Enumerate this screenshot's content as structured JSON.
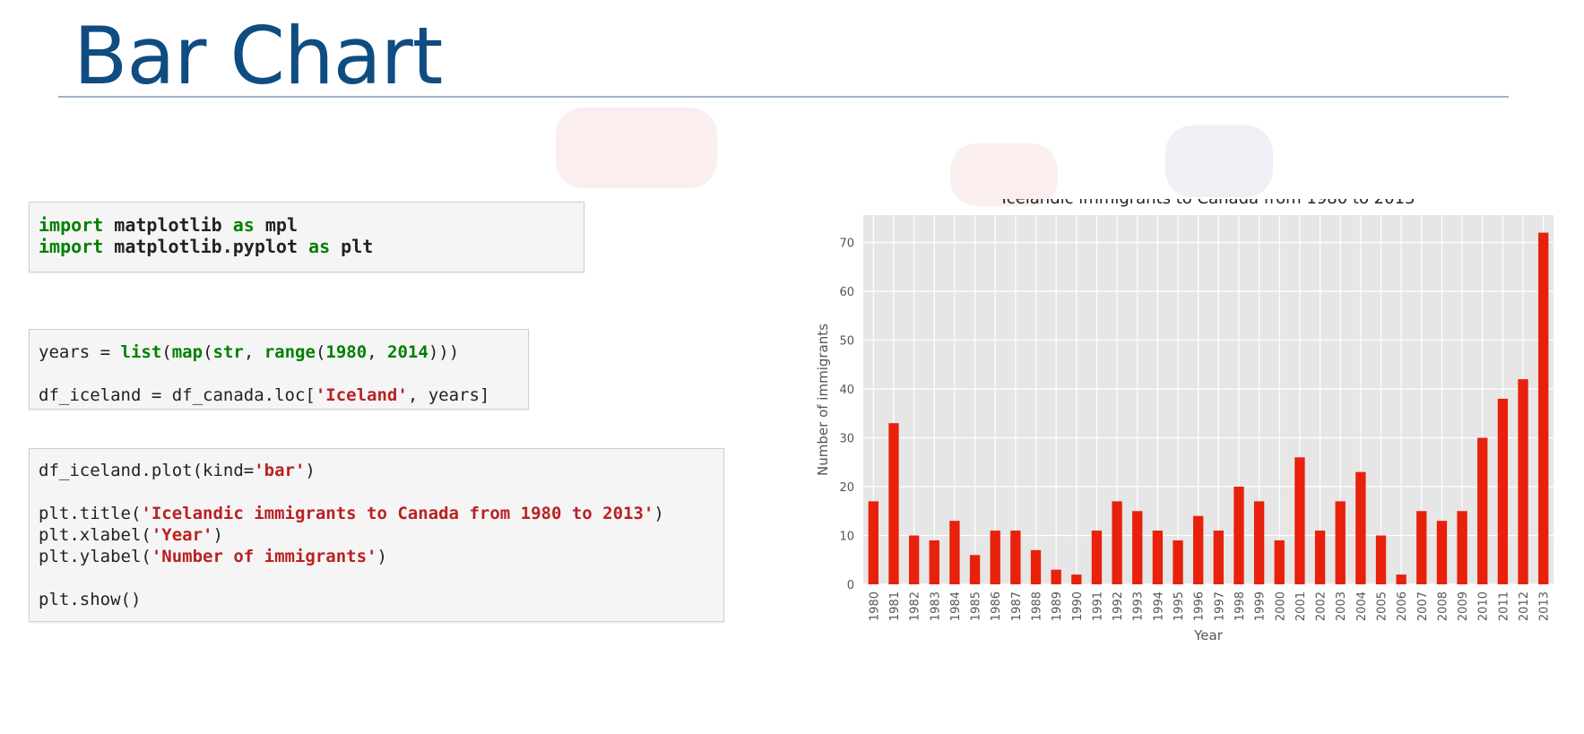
{
  "slide": {
    "title": "Bar Chart"
  },
  "code_cells": [
    {
      "lines": [
        [
          {
            "t": "import",
            "c": "kw"
          },
          {
            "t": " matplotlib "
          },
          {
            "t": "as",
            "c": "kw"
          },
          {
            "t": " mpl"
          }
        ],
        [
          {
            "t": "import",
            "c": "kw"
          },
          {
            "t": " matplotlib.pyplot "
          },
          {
            "t": "as",
            "c": "kw"
          },
          {
            "t": " plt"
          }
        ]
      ]
    },
    {
      "lines": [
        [
          {
            "t": "years = "
          },
          {
            "t": "list",
            "c": "bi"
          },
          {
            "t": "("
          },
          {
            "t": "map",
            "c": "bi"
          },
          {
            "t": "("
          },
          {
            "t": "str",
            "c": "bi"
          },
          {
            "t": ", "
          },
          {
            "t": "range",
            "c": "bi"
          },
          {
            "t": "("
          },
          {
            "t": "1980",
            "c": "num"
          },
          {
            "t": ", "
          },
          {
            "t": "2014",
            "c": "num"
          },
          {
            "t": ")))"
          }
        ],
        [],
        [
          {
            "t": "df_iceland = df_canada.loc["
          },
          {
            "t": "'Iceland'",
            "c": "str"
          },
          {
            "t": ", years]"
          }
        ]
      ]
    },
    {
      "lines": [
        [
          {
            "t": "df_iceland.plot(kind="
          },
          {
            "t": "'bar'",
            "c": "str"
          },
          {
            "t": ")"
          }
        ],
        [],
        [
          {
            "t": "plt.title("
          },
          {
            "t": "'Icelandic immigrants to Canada from 1980 to 2013'",
            "c": "str"
          },
          {
            "t": ")"
          }
        ],
        [
          {
            "t": "plt.xlabel("
          },
          {
            "t": "'Year'",
            "c": "str"
          },
          {
            "t": ")"
          }
        ],
        [
          {
            "t": "plt.ylabel("
          },
          {
            "t": "'Number of immigrants'",
            "c": "str"
          },
          {
            "t": ")"
          }
        ],
        [],
        [
          {
            "t": "plt.show()"
          }
        ]
      ]
    }
  ],
  "chart_data": {
    "type": "bar",
    "title": "Icelandic immigrants to Canada from 1980 to 2013",
    "xlabel": "Year",
    "ylabel": "Number of immigrants",
    "categories": [
      "1980",
      "1981",
      "1982",
      "1983",
      "1984",
      "1985",
      "1986",
      "1987",
      "1988",
      "1989",
      "1990",
      "1991",
      "1992",
      "1993",
      "1994",
      "1995",
      "1996",
      "1997",
      "1998",
      "1999",
      "2000",
      "2001",
      "2002",
      "2003",
      "2004",
      "2005",
      "2006",
      "2007",
      "2008",
      "2009",
      "2010",
      "2011",
      "2012",
      "2013"
    ],
    "values": [
      17,
      33,
      10,
      9,
      13,
      6,
      11,
      11,
      7,
      3,
      2,
      11,
      17,
      15,
      11,
      9,
      14,
      11,
      20,
      17,
      9,
      26,
      11,
      17,
      23,
      10,
      2,
      15,
      13,
      15,
      30,
      38,
      42,
      72
    ],
    "ylim": [
      0,
      75.6
    ],
    "yticks": [
      0,
      10,
      20,
      30,
      40,
      50,
      60,
      70
    ],
    "grid": true,
    "bar_color": "#e8210c",
    "plot_background": "#e6e6e6",
    "grid_color": "#ffffff"
  },
  "colors": {
    "title": "#0f4c81",
    "keyword": "#008000",
    "string": "#ba2121"
  }
}
